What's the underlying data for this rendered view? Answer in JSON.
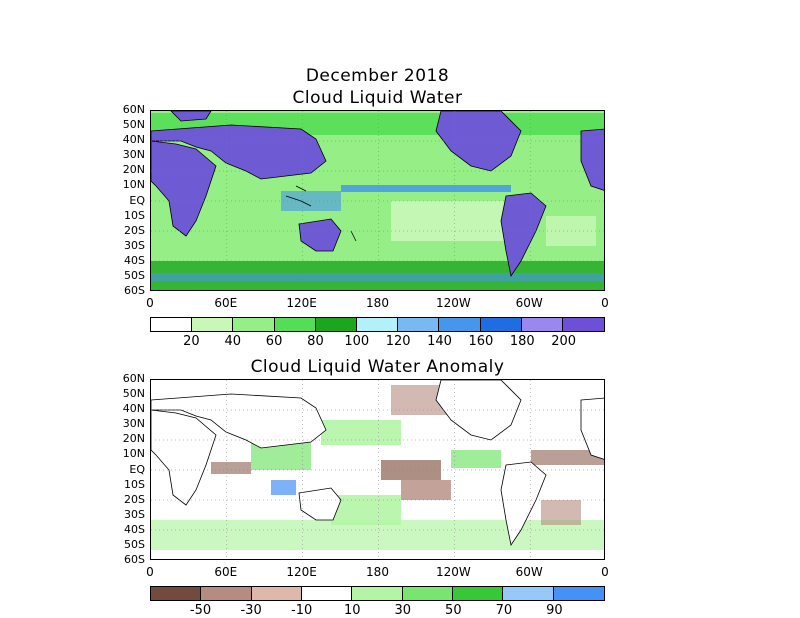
{
  "header": {
    "date_title": "December 2018",
    "panel1_title": "Cloud Liquid Water",
    "panel2_title": "Cloud Liquid Water Anomaly"
  },
  "axes": {
    "lat_labels": [
      "60N",
      "50N",
      "40N",
      "30N",
      "20N",
      "10N",
      "EQ",
      "10S",
      "20S",
      "30S",
      "40S",
      "50S",
      "60S"
    ],
    "lon_labels": [
      "0",
      "60E",
      "120E",
      "180",
      "120W",
      "60W",
      "0"
    ]
  },
  "colorbar1": {
    "labels": [
      "20",
      "40",
      "60",
      "80",
      "100",
      "120",
      "140",
      "160",
      "180",
      "200"
    ],
    "colors": [
      "#ffffff",
      "#c8f7b8",
      "#96ee87",
      "#55dd55",
      "#1ea51e",
      "#b4f0fa",
      "#78b9f0",
      "#4696eb",
      "#1e6ee1",
      "#9b87f0",
      "#6e50d7"
    ]
  },
  "colorbar2": {
    "labels": [
      "-50",
      "-30",
      "-10",
      "10",
      "30",
      "50",
      "70",
      "90"
    ],
    "colors": [
      "#734b3c",
      "#b48c80",
      "#deb9aa",
      "#ffffff",
      "#b4f5a5",
      "#78e66e",
      "#37c837",
      "#96c8fa",
      "#4691f5"
    ]
  },
  "map_colors": {
    "land_panel1": "#6e5ad2",
    "ocean_low": "#c8f7b8",
    "ocean_mid": "#55dd55",
    "ocean_high": "#1ea51e",
    "blue_band": "#4696eb",
    "anom_pos": "#78e66e",
    "anom_neg": "#b48c80",
    "anom_neg_strong": "#8c5f50"
  }
}
